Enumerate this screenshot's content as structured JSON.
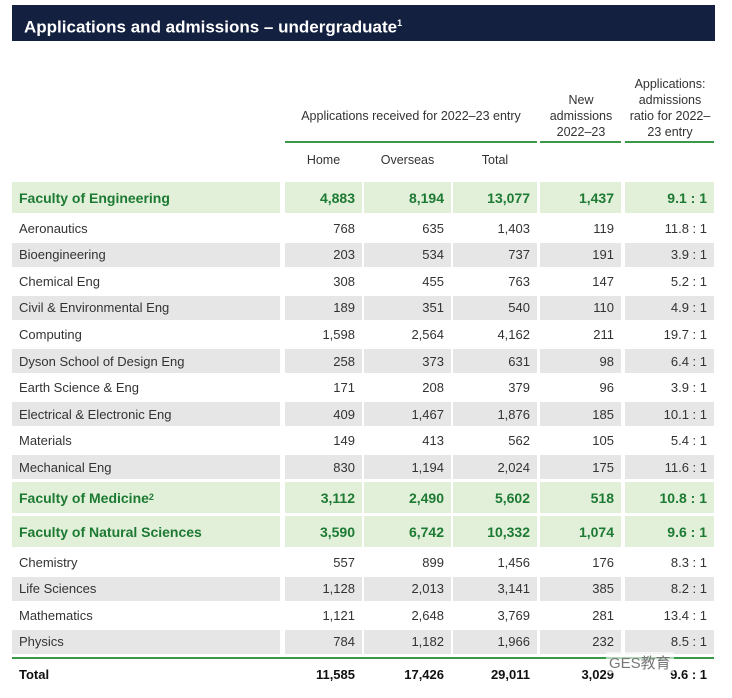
{
  "header": {
    "title": "Applications and admissions – undergraduate",
    "note": "1"
  },
  "columns": {
    "group": "Applications received for 2022–23 entry",
    "home": "Home",
    "overseas": "Overseas",
    "total": "Total",
    "new": "New admissions 2022–23",
    "ratio": "Applications: admissions ratio for 2022–23 entry"
  },
  "faculties": [
    {
      "label": "Faculty of Engineering",
      "values": [
        "4,883",
        "8,194",
        "13,077",
        "1,437",
        "9.1 : 1"
      ],
      "departments": [
        {
          "label": "Aeronautics",
          "values": [
            "768",
            "635",
            "1,403",
            "119",
            "11.8 : 1"
          ]
        },
        {
          "label": "Bioengineering",
          "values": [
            "203",
            "534",
            "737",
            "191",
            "3.9 : 1"
          ]
        },
        {
          "label": "Chemical Eng",
          "values": [
            "308",
            "455",
            "763",
            "147",
            "5.2 : 1"
          ]
        },
        {
          "label": "Civil & Environmental Eng",
          "values": [
            "189",
            "351",
            "540",
            "110",
            "4.9 : 1"
          ]
        },
        {
          "label": "Computing",
          "values": [
            "1,598",
            "2,564",
            "4,162",
            "211",
            "19.7 : 1"
          ]
        },
        {
          "label": "Dyson School of Design Eng",
          "values": [
            "258",
            "373",
            "631",
            "98",
            "6.4 : 1"
          ]
        },
        {
          "label": "Earth Science & Eng",
          "values": [
            "171",
            "208",
            "379",
            "96",
            "3.9 : 1"
          ]
        },
        {
          "label": "Electrical & Electronic Eng",
          "values": [
            "409",
            "1,467",
            "1,876",
            "185",
            "10.1 : 1"
          ]
        },
        {
          "label": "Materials",
          "values": [
            "149",
            "413",
            "562",
            "105",
            "5.4 : 1"
          ]
        },
        {
          "label": "Mechanical Eng",
          "values": [
            "830",
            "1,194",
            "2,024",
            "175",
            "11.6 : 1"
          ]
        }
      ]
    },
    {
      "label": "Faculty of Medicine",
      "note": "2",
      "values": [
        "3,112",
        "2,490",
        "5,602",
        "518",
        "10.8 : 1"
      ],
      "departments": []
    },
    {
      "label": "Faculty of Natural Sciences",
      "values": [
        "3,590",
        "6,742",
        "10,332",
        "1,074",
        "9.6 : 1"
      ],
      "departments": [
        {
          "label": "Chemistry",
          "values": [
            "557",
            "899",
            "1,456",
            "176",
            "8.3 : 1"
          ]
        },
        {
          "label": "Life Sciences",
          "values": [
            "1,128",
            "2,013",
            "3,141",
            "385",
            "8.2 : 1"
          ]
        },
        {
          "label": "Mathematics",
          "values": [
            "1,121",
            "2,648",
            "3,769",
            "281",
            "13.4 : 1"
          ]
        },
        {
          "label": "Physics",
          "values": [
            "784",
            "1,182",
            "1,966",
            "232",
            "8.5 : 1"
          ]
        }
      ]
    }
  ],
  "total": {
    "label": "Total",
    "values": [
      "11,585",
      "17,426",
      "29,011",
      "3,029",
      "9.6 : 1"
    ]
  },
  "watermark": "GES教育"
}
